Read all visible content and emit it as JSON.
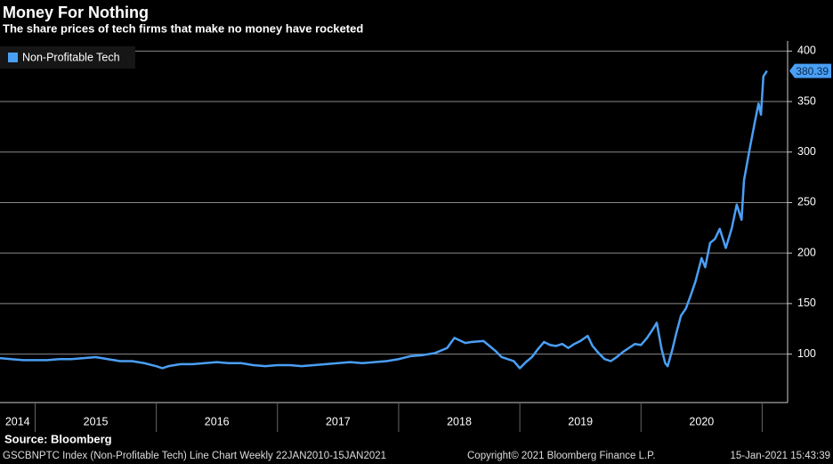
{
  "chart_data": {
    "type": "line",
    "title": "Money For Nothing",
    "subtitle": "The share prices of tech firms that make no money have rocketed",
    "source": "Source: Bloomberg",
    "footer_left": "GSCBNPTC Index (Non-Profitable Tech) Line Chart  Weekly 22JAN2010-15JAN2021",
    "footer_center": "Copyright© 2021 Bloomberg Finance L.P.",
    "footer_right": "15-Jan-2021 15:43:39",
    "legend_position": "upper left",
    "grid": true,
    "xlim": [
      2014.71,
      2021.21
    ],
    "xticks": [
      2015,
      2016,
      2017,
      2018,
      2019,
      2020,
      2021
    ],
    "year_labels": [
      2014,
      2015,
      2016,
      2017,
      2018,
      2019,
      2020
    ],
    "ylim": [
      52,
      410
    ],
    "yticks": [
      100,
      150,
      200,
      250,
      300,
      350,
      400
    ],
    "x": [
      2014.71,
      2014.8,
      2014.9,
      2015.0,
      2015.1,
      2015.2,
      2015.3,
      2015.4,
      2015.5,
      2015.6,
      2015.7,
      2015.8,
      2015.9,
      2016.0,
      2016.05,
      2016.1,
      2016.2,
      2016.3,
      2016.4,
      2016.5,
      2016.6,
      2016.7,
      2016.8,
      2016.9,
      2017.0,
      2017.1,
      2017.2,
      2017.3,
      2017.4,
      2017.5,
      2017.6,
      2017.7,
      2017.8,
      2017.9,
      2018.0,
      2018.1,
      2018.2,
      2018.3,
      2018.4,
      2018.46,
      2018.55,
      2018.6,
      2018.7,
      2018.75,
      2018.8,
      2018.85,
      2018.9,
      2018.95,
      2019.0,
      2019.05,
      2019.1,
      2019.15,
      2019.2,
      2019.25,
      2019.3,
      2019.35,
      2019.4,
      2019.45,
      2019.5,
      2019.56,
      2019.6,
      2019.65,
      2019.7,
      2019.75,
      2019.8,
      2019.85,
      2019.9,
      2019.95,
      2020.0,
      2020.05,
      2020.1,
      2020.13,
      2020.17,
      2020.2,
      2020.22,
      2020.26,
      2020.29,
      2020.33,
      2020.37,
      2020.41,
      2020.45,
      2020.5,
      2020.53,
      2020.57,
      2020.61,
      2020.65,
      2020.7,
      2020.75,
      2020.79,
      2020.83,
      2020.85,
      2020.9,
      2020.94,
      2020.97,
      2020.99,
      2021.01,
      2021.04
    ],
    "series": [
      {
        "name": "Non-Profitable Tech",
        "color": "#4a9ff5",
        "values": [
          96,
          95,
          94,
          94,
          94,
          95,
          95,
          96,
          97,
          95,
          93,
          93,
          91,
          88,
          86,
          88,
          90,
          90,
          91,
          92,
          91,
          91,
          89,
          88,
          89,
          89,
          88,
          89,
          90,
          91,
          92,
          91,
          92,
          93,
          95,
          98,
          99,
          101,
          106,
          116,
          111,
          112,
          113,
          108,
          103,
          97,
          95,
          93,
          86,
          92,
          97,
          105,
          112,
          109,
          108,
          110,
          106,
          110,
          113,
          118,
          108,
          101,
          95,
          93,
          97,
          102,
          106,
          110,
          109,
          116,
          125,
          131,
          105,
          91,
          88,
          105,
          120,
          138,
          145,
          158,
          172,
          195,
          186,
          210,
          214,
          224,
          205,
          225,
          248,
          233,
          272,
          305,
          330,
          348,
          337,
          375,
          380.39
        ]
      }
    ]
  }
}
